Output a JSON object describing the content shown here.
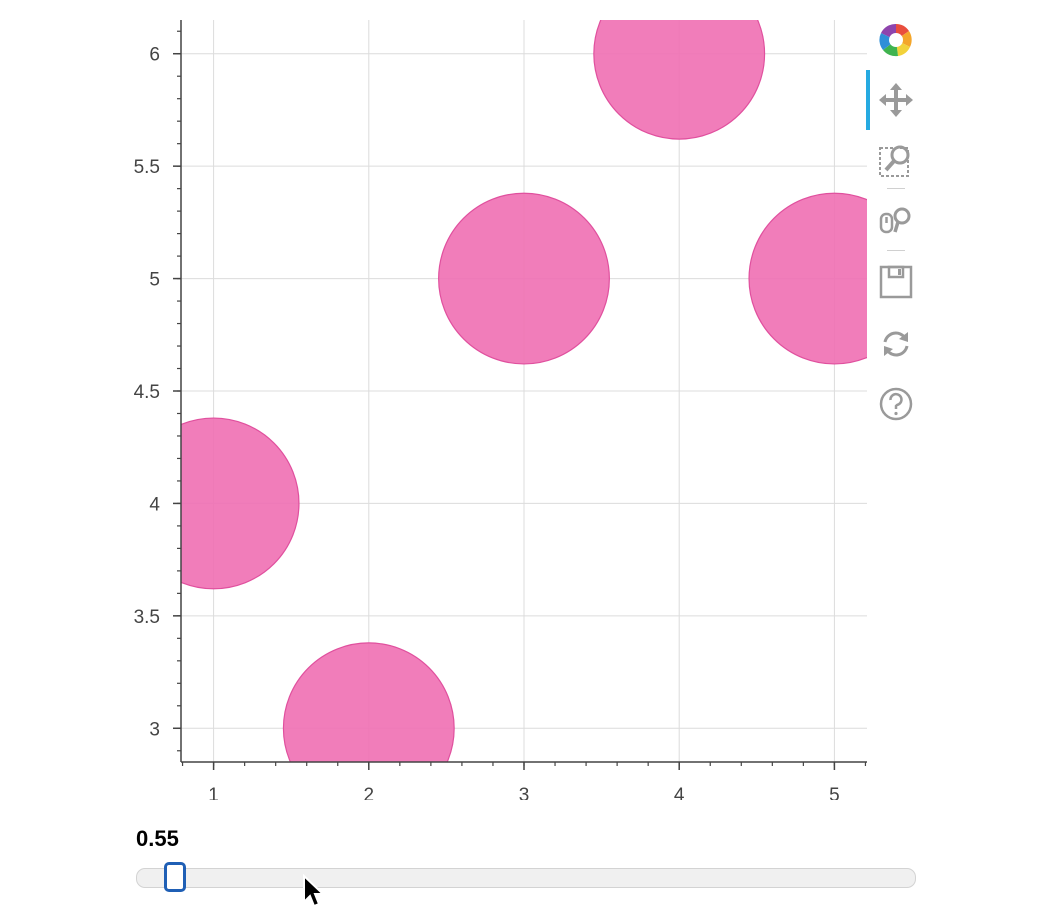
{
  "chart_data": {
    "type": "scatter",
    "x": [
      1,
      2,
      3,
      4,
      5
    ],
    "y": [
      4,
      3,
      5,
      6,
      5
    ],
    "marker": "circle",
    "marker_radius_data_units": 0.55,
    "color": "#f06fb3",
    "xlim": [
      0.79,
      5.21
    ],
    "ylim": [
      2.85,
      6.15
    ],
    "xticks": [
      1,
      2,
      3,
      4,
      5
    ],
    "xtick_labels": [
      "1",
      "2",
      "3",
      "4",
      "5"
    ],
    "yticks": [
      3,
      3.5,
      4,
      4.5,
      5,
      5.5,
      6
    ],
    "ytick_labels": [
      "3",
      "3.5",
      "4",
      "4.5",
      "5",
      "5.5",
      "6"
    ],
    "grid": true,
    "title": "",
    "xlabel": "",
    "ylabel": ""
  },
  "toolbar": {
    "tools": [
      {
        "name": "bokeh-logo-icon",
        "interactable": true,
        "active": false
      },
      {
        "name": "pan-tool-icon",
        "interactable": true,
        "active": true
      },
      {
        "name": "box-zoom-tool-icon",
        "interactable": true,
        "active": false
      },
      {
        "name": "wheel-zoom-tool-icon",
        "interactable": true,
        "active": false
      },
      {
        "name": "save-tool-icon",
        "interactable": true,
        "active": false
      },
      {
        "name": "reset-tool-icon",
        "interactable": true,
        "active": false
      },
      {
        "name": "help-tool-icon",
        "interactable": true,
        "active": false
      }
    ]
  },
  "slider": {
    "value_text": "0.55",
    "value": 0.55,
    "fraction": 0.03
  },
  "colors": {
    "marker_fill": "#f06fb3",
    "marker_stroke": "#e0509e",
    "grid": "#dcdcdc",
    "axis": "#444444",
    "slider_handle": "#1f5fb5",
    "toolbar_active": "#26aae1",
    "icon_gray": "#9a9a9a"
  }
}
